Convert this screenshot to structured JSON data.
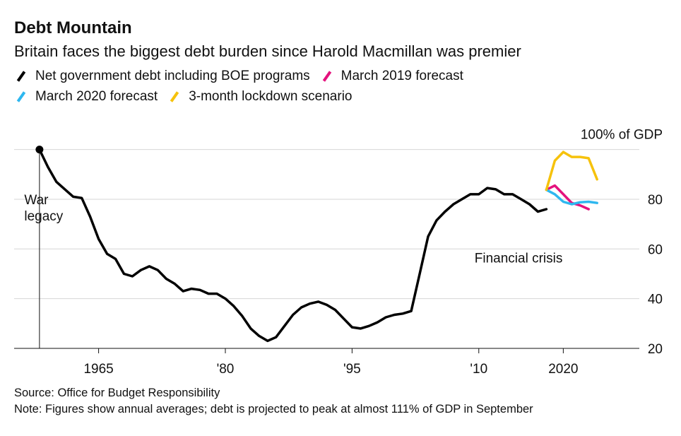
{
  "title": "Debt Mountain",
  "subtitle": "Britain faces the biggest debt burden since Harold Macmillan was premier",
  "legend": [
    {
      "label": "Net government debt including BOE programs",
      "color": "#000000"
    },
    {
      "label": "March 2019 forecast",
      "color": "#e4127d"
    },
    {
      "label": "March 2020 forecast",
      "color": "#2eb7ef"
    },
    {
      "label": "3-month lockdown scenario",
      "color": "#f6c20c"
    }
  ],
  "source": "Source: Office for Budget Responsibility",
  "note": "Note: Figures show annual averages; debt is projected to peak at almost 111% of GDP in September",
  "chart_data": {
    "type": "line",
    "ylabel": "100% of GDP",
    "xlim": [
      1955,
      2029
    ],
    "ylim": [
      20,
      105
    ],
    "y_ticks": [
      20,
      40,
      60,
      80
    ],
    "y_tick_labels": [
      "20",
      "40",
      "60",
      "80"
    ],
    "top_gridline": 100,
    "x_ticks": [
      1965,
      1980,
      1995,
      2010,
      2020
    ],
    "x_tick_labels": [
      "1965",
      "'80",
      "'95",
      "'10",
      "2020"
    ],
    "grid": true,
    "annotations": [
      {
        "text": "War",
        "x": 1956.2,
        "y": 78
      },
      {
        "text": "legacy",
        "x": 1956.2,
        "y": 71.5
      },
      {
        "text": "Financial crisis",
        "x": 2009.5,
        "y": 54.5
      }
    ],
    "series": [
      {
        "name": "Net government debt including BOE programs",
        "color": "#000000",
        "marker_at_start": true,
        "x": [
          1958,
          1959,
          1960,
          1961,
          1962,
          1963,
          1964,
          1965,
          1966,
          1967,
          1968,
          1969,
          1970,
          1971,
          1972,
          1973,
          1974,
          1975,
          1976,
          1977,
          1978,
          1979,
          1980,
          1981,
          1982,
          1983,
          1984,
          1985,
          1986,
          1987,
          1988,
          1989,
          1990,
          1991,
          1992,
          1993,
          1994,
          1995,
          1996,
          1997,
          1998,
          1999,
          2000,
          2001,
          2002,
          2003,
          2004,
          2005,
          2006,
          2007,
          2008,
          2009,
          2010,
          2011,
          2012,
          2013,
          2014,
          2015,
          2016,
          2017,
          2018
        ],
        "y": [
          100,
          93,
          87,
          84,
          81,
          80.5,
          73,
          64,
          58,
          56,
          50,
          49,
          51.5,
          53,
          51.5,
          48,
          46,
          43,
          44,
          43.5,
          42,
          42,
          40,
          37,
          33,
          28,
          25,
          23,
          24.5,
          29,
          33.5,
          36.5,
          38,
          38.8,
          37.5,
          35.5,
          32,
          28.5,
          28,
          29,
          30.5,
          32.5,
          33.5,
          34,
          35,
          50,
          65,
          71.5,
          75,
          78,
          80,
          82,
          82,
          84.5,
          84,
          82,
          82,
          80,
          78,
          75,
          76
        ]
      },
      {
        "name": "March 2019 forecast",
        "color": "#e4127d",
        "x": [
          2018,
          2019,
          2020,
          2021,
          2022,
          2023
        ],
        "y": [
          83.8,
          85.5,
          82,
          78.5,
          77.5,
          76
        ]
      },
      {
        "name": "March 2020 forecast",
        "color": "#2eb7ef",
        "x": [
          2018,
          2019,
          2020,
          2021,
          2022,
          2023,
          2024
        ],
        "y": [
          83.8,
          82,
          79,
          78,
          78.8,
          79,
          78.5
        ]
      },
      {
        "name": "3-month lockdown scenario",
        "color": "#f6c20c",
        "x": [
          2018,
          2019,
          2020,
          2021,
          2022,
          2023,
          2024
        ],
        "y": [
          83.8,
          95.5,
          99,
          97,
          97,
          96.5,
          88
        ]
      }
    ]
  }
}
